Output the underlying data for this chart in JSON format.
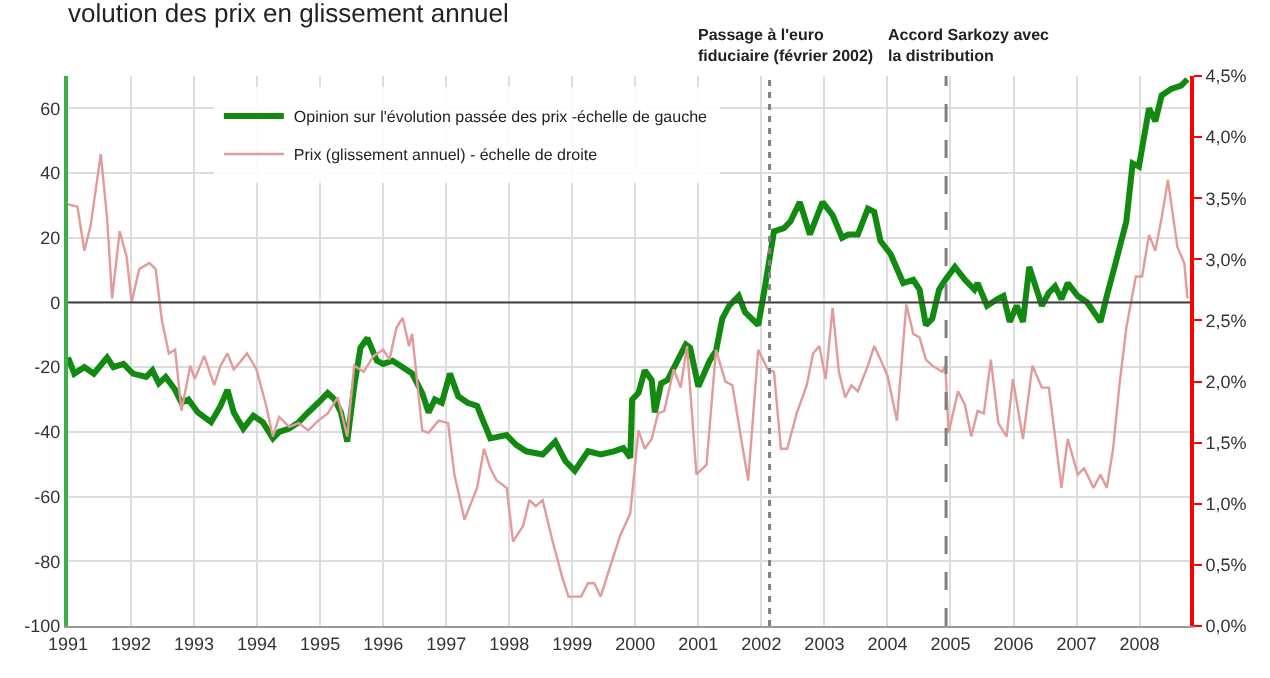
{
  "chart_data": {
    "type": "line",
    "title": "volution des prix en glissement annuel",
    "xlim": [
      1991,
      2008.8
    ],
    "xticks": [
      1991,
      1992,
      1993,
      1994,
      1995,
      1996,
      1997,
      1998,
      1999,
      2000,
      2001,
      2002,
      2003,
      2004,
      2005,
      2006,
      2007,
      2008
    ],
    "ylim": [
      -100,
      70
    ],
    "yticks": [
      -100,
      -80,
      -60,
      -40,
      -20,
      0,
      20,
      40,
      60
    ],
    "y2lim": [
      0,
      4.5
    ],
    "y2ticks": [
      {
        "value": 0,
        "label": "0,0%"
      },
      {
        "value": 0.5,
        "label": "0,5%"
      },
      {
        "value": 1,
        "label": "1,0%"
      },
      {
        "value": 1.5,
        "label": "1,5%"
      },
      {
        "value": 2,
        "label": "2,0%"
      },
      {
        "value": 2.5,
        "label": "2,5%"
      },
      {
        "value": 3,
        "label": "3,0%"
      },
      {
        "value": 3.5,
        "label": "3,5%"
      },
      {
        "value": 4,
        "label": "4,0%"
      },
      {
        "value": 4.5,
        "label": "4,5%"
      }
    ],
    "grid": true,
    "legend": "top",
    "marker": "none",
    "line_style": "solid",
    "ref_lines": [
      {
        "axis": "y",
        "value": 0,
        "color": "#404040",
        "line_style": "solid"
      },
      {
        "axis": "x",
        "value": 2002.13,
        "label": "Passage à l'euro\nfiduciaire (février 2002)",
        "color": "#808080",
        "line_style": "dotted"
      },
      {
        "axis": "x",
        "value": 2004.93,
        "label": "Accord Sarkozy avec\nla distribution",
        "color": "#808080",
        "line_style": "dashed"
      }
    ],
    "series": [
      {
        "name": "Prix (glissement annuel) - échelle de droite",
        "color": "#e39a9a",
        "axis": "y2",
        "x": [
          1991.0,
          1991.15,
          1991.26,
          1991.36,
          1991.52,
          1991.62,
          1991.7,
          1991.82,
          1991.93,
          1992.01,
          1992.13,
          1992.29,
          1992.39,
          1992.49,
          1992.6,
          1992.7,
          1992.8,
          1992.94,
          1993.01,
          1993.16,
          1993.32,
          1993.42,
          1993.53,
          1993.63,
          1993.73,
          1993.84,
          1993.99,
          1994.14,
          1994.25,
          1994.35,
          1994.51,
          1994.66,
          1994.81,
          1994.97,
          1995.12,
          1995.28,
          1995.43,
          1995.54,
          1995.69,
          1995.85,
          1996.0,
          1996.1,
          1996.21,
          1996.31,
          1996.41,
          1996.46,
          1996.62,
          1996.72,
          1996.88,
          1997.03,
          1997.13,
          1997.29,
          1997.49,
          1997.6,
          1997.7,
          1997.8,
          1997.96,
          1998.06,
          1998.22,
          1998.32,
          1998.42,
          1998.53,
          1998.68,
          1998.84,
          1998.94,
          1999.14,
          1999.25,
          1999.35,
          1999.45,
          1999.61,
          1999.76,
          1999.92,
          2000.05,
          2000.15,
          2000.26,
          2000.36,
          2000.46,
          2000.61,
          2000.72,
          2000.82,
          2000.97,
          2001.13,
          2001.28,
          2001.43,
          2001.54,
          2001.69,
          2001.79,
          2001.95,
          2002.1,
          2002.2,
          2002.31,
          2002.41,
          2002.56,
          2002.72,
          2002.82,
          2002.92,
          2003.02,
          2003.13,
          2003.23,
          2003.33,
          2003.43,
          2003.53,
          2003.69,
          2003.79,
          2003.89,
          2004.0,
          2004.15,
          2004.3,
          2004.41,
          2004.51,
          2004.61,
          2004.71,
          2004.87,
          2004.92,
          2004.97,
          2005.12,
          2005.23,
          2005.33,
          2005.43,
          2005.53,
          2005.64,
          2005.76,
          2005.89,
          2005.99,
          2006.15,
          2006.3,
          2006.45,
          2006.56,
          2006.66,
          2006.76,
          2006.86,
          2007.02,
          2007.12,
          2007.27,
          2007.38,
          2007.48,
          2007.58,
          2007.68,
          2007.79,
          2007.94,
          2008.04,
          2008.15,
          2008.25,
          2008.35,
          2008.45,
          2008.6,
          2008.71,
          2008.76
        ],
        "values": [
          3.45,
          3.43,
          3.07,
          3.28,
          3.86,
          3.34,
          2.68,
          3.23,
          3.02,
          2.65,
          2.92,
          2.97,
          2.92,
          2.5,
          2.23,
          2.26,
          1.76,
          2.13,
          2.02,
          2.21,
          1.97,
          2.13,
          2.23,
          2.1,
          2.16,
          2.23,
          2.1,
          1.81,
          1.55,
          1.71,
          1.63,
          1.66,
          1.6,
          1.68,
          1.74,
          1.87,
          1.55,
          2.13,
          2.08,
          2.21,
          2.26,
          2.18,
          2.44,
          2.52,
          2.29,
          2.39,
          1.6,
          1.58,
          1.68,
          1.66,
          1.24,
          0.87,
          1.13,
          1.45,
          1.29,
          1.19,
          1.13,
          0.69,
          0.82,
          1.03,
          0.98,
          1.03,
          0.71,
          0.4,
          0.24,
          0.24,
          0.35,
          0.35,
          0.24,
          0.5,
          0.74,
          0.92,
          1.6,
          1.45,
          1.53,
          1.74,
          1.76,
          2.1,
          1.95,
          2.29,
          1.24,
          1.32,
          2.26,
          2.0,
          1.97,
          1.5,
          1.19,
          2.26,
          2.1,
          2.08,
          1.45,
          1.45,
          1.74,
          1.97,
          2.23,
          2.29,
          2.02,
          2.6,
          2.08,
          1.87,
          1.97,
          1.92,
          2.13,
          2.29,
          2.18,
          2.05,
          1.68,
          2.63,
          2.39,
          2.36,
          2.18,
          2.13,
          2.08,
          2.13,
          1.58,
          1.92,
          1.81,
          1.55,
          1.76,
          1.74,
          2.18,
          1.66,
          1.55,
          2.02,
          1.53,
          2.13,
          1.95,
          1.95,
          1.55,
          1.13,
          1.53,
          1.24,
          1.29,
          1.13,
          1.24,
          1.13,
          1.45,
          1.97,
          2.44,
          2.86,
          2.86,
          3.2,
          3.07,
          3.34,
          3.65,
          3.1,
          2.97,
          2.68
        ]
      },
      {
        "name": "Opinion sur l'évolution passée des prix -échelle de gauche",
        "color": "#128a12",
        "axis": "y",
        "x": [
          1991.0,
          1991.1,
          1991.26,
          1991.41,
          1991.62,
          1991.72,
          1991.88,
          1992.03,
          1992.24,
          1992.34,
          1992.44,
          1992.55,
          1992.7,
          1992.8,
          1992.91,
          1993.06,
          1993.27,
          1993.42,
          1993.53,
          1993.63,
          1993.78,
          1993.94,
          1994.09,
          1994.25,
          1994.35,
          1994.51,
          1994.66,
          1994.81,
          1994.97,
          1995.12,
          1995.23,
          1995.33,
          1995.43,
          1995.54,
          1995.64,
          1995.75,
          1995.9,
          1996.0,
          1996.15,
          1996.31,
          1996.46,
          1996.62,
          1996.72,
          1996.82,
          1996.93,
          1997.06,
          1997.19,
          1997.34,
          1997.49,
          1997.7,
          1997.96,
          1998.11,
          1998.27,
          1998.53,
          1998.73,
          1998.89,
          1999.04,
          1999.25,
          1999.45,
          1999.66,
          1999.81,
          1999.92,
          1999.95,
          2000.05,
          2000.15,
          2000.26,
          2000.31,
          2000.41,
          2000.51,
          2000.67,
          2000.8,
          2000.87,
          2001.0,
          2001.18,
          2001.28,
          2001.38,
          2001.49,
          2001.64,
          2001.74,
          2001.95,
          2002.05,
          2002.2,
          2002.36,
          2002.46,
          2002.61,
          2002.77,
          2002.97,
          2003.13,
          2003.28,
          2003.38,
          2003.53,
          2003.69,
          2003.79,
          2003.89,
          2004.05,
          2004.25,
          2004.41,
          2004.51,
          2004.61,
          2004.71,
          2004.82,
          2004.92,
          2005.07,
          2005.23,
          2005.38,
          2005.43,
          2005.58,
          2005.74,
          2005.84,
          2005.94,
          2006.05,
          2006.15,
          2006.25,
          2006.45,
          2006.56,
          2006.66,
          2006.76,
          2006.86,
          2007.02,
          2007.17,
          2007.38,
          2007.48,
          2007.63,
          2007.79,
          2007.89,
          2007.99,
          2008.15,
          2008.25,
          2008.35,
          2008.5,
          2008.66,
          2008.76
        ],
        "values": [
          -17,
          -22,
          -20,
          -22,
          -17,
          -20,
          -19,
          -22,
          -23,
          -21,
          -25,
          -23,
          -27,
          -31,
          -30,
          -34,
          -37,
          -32,
          -27,
          -34,
          -39,
          -35,
          -37,
          -42,
          -40,
          -39,
          -37,
          -34,
          -31,
          -28,
          -30,
          -34,
          -43,
          -26,
          -14,
          -11,
          -18,
          -19,
          -18,
          -20,
          -22,
          -28,
          -34,
          -30,
          -31,
          -22,
          -29,
          -31,
          -32,
          -42,
          -41,
          -44,
          -46,
          -47,
          -43,
          -49,
          -52,
          -46,
          -47,
          -46,
          -45,
          -48,
          -30,
          -28,
          -21,
          -24,
          -34,
          -25,
          -24,
          -18,
          -13,
          -14,
          -26,
          -18,
          -15,
          -5,
          -1,
          2,
          -3,
          -7,
          4,
          22,
          23,
          25,
          31,
          21,
          31,
          27,
          20,
          21,
          21,
          29,
          28,
          19,
          15,
          6,
          7,
          4,
          -7,
          -5,
          4,
          7,
          11,
          7,
          4,
          6,
          -1,
          1,
          2,
          -6,
          -1,
          -6,
          11,
          -1,
          3,
          5,
          1,
          6,
          2,
          0,
          -6,
          2,
          13,
          25,
          43,
          42,
          60,
          56,
          64,
          66,
          67,
          69
        ]
      }
    ]
  }
}
